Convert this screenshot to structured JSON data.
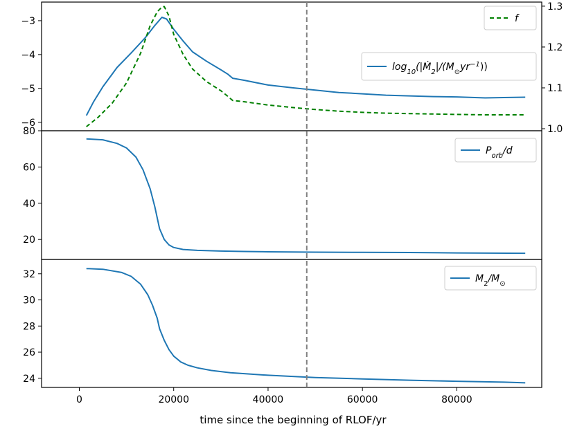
{
  "chart_data": {
    "type": "line",
    "shared_x": {
      "label": "time since the beginning of RLOF/yr",
      "lim": [
        -8000,
        98000
      ],
      "ticks": [
        0,
        20000,
        40000,
        60000,
        80000
      ],
      "tick_labels": [
        "0",
        "20000",
        "40000",
        "60000",
        "80000"
      ]
    },
    "vline": {
      "x": 48200,
      "color": "#808080",
      "style": "dashed"
    },
    "panels": [
      {
        "id": "mdot",
        "ylim": [
          -6.25,
          -2.45
        ],
        "yticks": [
          -6,
          -5,
          -4,
          -3
        ],
        "ytick_labels": [
          "−6",
          "−5",
          "−4",
          "−3"
        ],
        "y2lim": [
          0.995,
          1.31
        ],
        "y2ticks": [
          1.0,
          1.1,
          1.2,
          1.3
        ],
        "y2tick_labels": [
          "1.0",
          "1.1",
          "1.2",
          "1.3"
        ],
        "series": [
          {
            "name": "log10(|Ṁ2|/(M⊙yr−1))",
            "axis": "left",
            "color": "#1f77b4",
            "style": "solid",
            "x": [
              1500,
              3000,
              5000,
              8000,
              11000,
              14000,
              16000,
              17500,
              18500,
              20000,
              22000,
              24000,
              27000,
              30000,
              31500,
              32500,
              35000,
              40000,
              45000,
              50000,
              55000,
              60000,
              65000,
              70000,
              75000,
              80000,
              86000,
              90000,
              94500
            ],
            "y": [
              -5.8,
              -5.4,
              -4.95,
              -4.38,
              -3.95,
              -3.5,
              -3.14,
              -2.9,
              -2.95,
              -3.25,
              -3.6,
              -3.92,
              -4.2,
              -4.45,
              -4.58,
              -4.7,
              -4.76,
              -4.9,
              -4.98,
              -5.05,
              -5.12,
              -5.16,
              -5.2,
              -5.22,
              -5.24,
              -5.25,
              -5.28,
              -5.27,
              -5.26
            ]
          },
          {
            "name": "f",
            "axis": "right",
            "color": "#008000",
            "style": "dashed",
            "x": [
              1500,
              4000,
              7000,
              10000,
              13000,
              15000,
              16500,
              17500,
              18000,
              19000,
              20000,
              22000,
              24000,
              27000,
              30000,
              31500,
              32500,
              35000,
              40000,
              45000,
              50000,
              55000,
              60000,
              65000,
              70000,
              75000,
              80000,
              86000,
              94500
            ],
            "y": [
              1.005,
              1.028,
              1.063,
              1.112,
              1.185,
              1.252,
              1.286,
              1.298,
              1.299,
              1.276,
              1.231,
              1.182,
              1.146,
              1.115,
              1.093,
              1.079,
              1.069,
              1.066,
              1.058,
              1.052,
              1.047,
              1.043,
              1.04,
              1.038,
              1.037,
              1.036,
              1.035,
              1.034,
              1.034
            ]
          }
        ],
        "legends": [
          {
            "text": "f",
            "color": "#008000",
            "style": "dashed"
          },
          {
            "text": "log10(|M2|/(M⊙yr−1))",
            "color": "#1f77b4",
            "style": "solid"
          }
        ]
      },
      {
        "id": "porb",
        "ylim": [
          9,
          80
        ],
        "yticks": [
          20,
          40,
          60,
          80
        ],
        "ytick_labels": [
          "20",
          "40",
          "60",
          "80"
        ],
        "series": [
          {
            "name": "Porb/d",
            "color": "#1f77b4",
            "style": "solid",
            "x": [
              1500,
              5000,
              8000,
              10000,
              12000,
              13500,
              15000,
              16000,
              17000,
              18000,
              19000,
              20000,
              22000,
              25000,
              30000,
              35000,
              40000,
              50000,
              60000,
              70000,
              80000,
              94500
            ],
            "y": [
              75.5,
              75,
              73,
              70.5,
              65.5,
              58.5,
              48,
              38,
              26,
              20,
              17,
              15.6,
              14.5,
              14,
              13.6,
              13.4,
              13.2,
              13,
              12.9,
              12.8,
              12.6,
              12.4
            ]
          }
        ],
        "legends": [
          {
            "text": "Porb/d",
            "color": "#1f77b4",
            "style": "solid"
          }
        ]
      },
      {
        "id": "m2",
        "ylim": [
          23.3,
          33.1
        ],
        "yticks": [
          24,
          26,
          28,
          30,
          32
        ],
        "ytick_labels": [
          "24",
          "26",
          "28",
          "30",
          "32"
        ],
        "series": [
          {
            "name": "M2/M⊙",
            "color": "#1f77b4",
            "style": "solid",
            "x": [
              1500,
              5000,
              9000,
              11000,
              13000,
              14500,
              15500,
              16500,
              17000,
              18000,
              19000,
              20000,
              21500,
              23000,
              25000,
              28000,
              32000,
              40000,
              50000,
              60000,
              70000,
              80000,
              90000,
              94500
            ],
            "y": [
              32.4,
              32.35,
              32.1,
              31.8,
              31.2,
              30.4,
              29.6,
              28.6,
              27.8,
              26.9,
              26.2,
              25.7,
              25.25,
              25.0,
              24.8,
              24.6,
              24.43,
              24.23,
              24.05,
              23.95,
              23.85,
              23.77,
              23.7,
              23.65
            ]
          }
        ],
        "legends": [
          {
            "text": "M2/M⊙",
            "color": "#1f77b4",
            "style": "solid"
          }
        ]
      }
    ]
  }
}
